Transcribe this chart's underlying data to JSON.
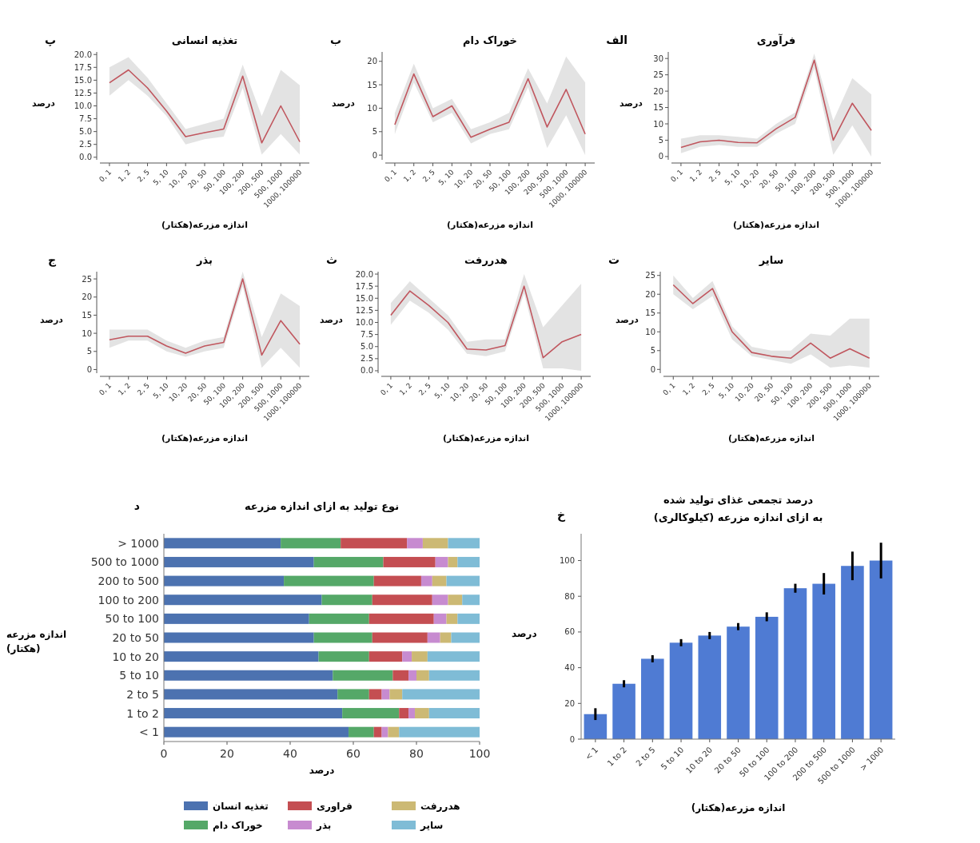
{
  "chart_data": [
    {
      "type": "line",
      "title": "فرآوری",
      "xlabel": "اندازه مزرعه(هکتار)",
      "ylabel": "درصد",
      "annotations": [
        "الف"
      ],
      "categories": [
        "0, 1",
        "1, 2",
        "2, 5",
        "5, 10",
        "10, 20",
        "20, 50",
        "50, 100",
        "100, 200",
        "200, 500",
        "500, 1000",
        "1000, 100000"
      ],
      "ylim": [
        -1,
        32
      ],
      "yticks": [
        0,
        5,
        10,
        15,
        20,
        25,
        30
      ],
      "series": [
        {
          "color": "#c0565e",
          "values": [
            2.8,
            4.5,
            5,
            4.3,
            4.2,
            8.5,
            12,
            29.5,
            5,
            16.3,
            8
          ],
          "lower": [
            1,
            3,
            3.5,
            3,
            3,
            7,
            10,
            27,
            0.5,
            9.5,
            0
          ],
          "upper": [
            5.5,
            6.5,
            6.5,
            6,
            5.5,
            10,
            13.5,
            31.5,
            11,
            24,
            19
          ]
        }
      ]
    },
    {
      "type": "line",
      "title": "خوراک دام",
      "xlabel": "اندازه مزرعه(هکتار)",
      "ylabel": "درصد",
      "annotations": [
        "ب"
      ],
      "categories": [
        "0, 1",
        "1, 2",
        "2, 5",
        "5, 10",
        "10, 20",
        "20, 50",
        "50, 100",
        "100, 200",
        "200, 500",
        "500, 1000",
        "1000, 100000"
      ],
      "ylim": [
        -1,
        22
      ],
      "yticks": [
        0,
        5,
        10,
        15,
        20
      ],
      "series": [
        {
          "color": "#c0565e",
          "values": [
            6.5,
            17.3,
            8.2,
            10.5,
            3.8,
            5.5,
            7,
            16.3,
            6,
            14,
            4.5
          ],
          "lower": [
            4.5,
            15.5,
            7,
            9,
            2.5,
            4.5,
            5.5,
            14.5,
            1.5,
            8.5,
            0
          ],
          "upper": [
            9,
            19.5,
            10,
            12,
            5.5,
            7,
            9,
            18.5,
            11,
            21,
            15.5
          ]
        }
      ]
    },
    {
      "type": "line",
      "title": "تغذیه انسانی",
      "xlabel": "اندازه مزرعه(هکتار)",
      "ylabel": "درصد",
      "annotations": [
        "پ"
      ],
      "categories": [
        "0, 1",
        "1, 2",
        "2, 5",
        "5, 10",
        "10, 20",
        "20, 50",
        "50, 100",
        "100, 200",
        "200, 500",
        "500, 1000",
        "1000, 100000"
      ],
      "ylim": [
        -0.5,
        20.5
      ],
      "yticks": [
        {
          "value": 0,
          "label": "0.0"
        },
        2.5,
        {
          "value": 5,
          "label": "5.0"
        },
        7.5,
        {
          "value": 10,
          "label": "10.0"
        },
        12.5,
        {
          "value": 15,
          "label": "15.0"
        },
        17.5,
        {
          "value": 20,
          "label": "20.0"
        }
      ],
      "series": [
        {
          "color": "#c0565e",
          "values": [
            14.5,
            17,
            13.5,
            9,
            4,
            4.8,
            5.5,
            15.8,
            2.8,
            10,
            3
          ],
          "lower": [
            12,
            15,
            12,
            8,
            2.5,
            3.5,
            4,
            13.5,
            0.5,
            4.5,
            0.5
          ],
          "upper": [
            17.5,
            19.5,
            15.5,
            10.5,
            5.5,
            6.5,
            7.5,
            18,
            8,
            17,
            14
          ]
        }
      ]
    },
    {
      "type": "line",
      "title": "سایر",
      "xlabel": "اندازه مزرعه(هکتار)",
      "ylabel": "درصد",
      "annotations": [
        "ت"
      ],
      "categories": [
        "0, 1",
        "1, 2",
        "2, 5",
        "5, 10",
        "10, 20",
        "20, 50",
        "50, 100",
        "100, 200",
        "200, 500",
        "500, 1000",
        "1000, 100000"
      ],
      "ylim": [
        -1,
        26
      ],
      "yticks": [
        0,
        5,
        10,
        15,
        20,
        25
      ],
      "series": [
        {
          "color": "#c0565e",
          "values": [
            22.5,
            17.5,
            21.5,
            10,
            4.5,
            3.5,
            3,
            7,
            3,
            5.5,
            3
          ],
          "lower": [
            20,
            16,
            19.5,
            8,
            3.5,
            2.5,
            1.5,
            4,
            0.5,
            1,
            0.5
          ],
          "upper": [
            25,
            19,
            23.5,
            11.5,
            6,
            5,
            5,
            9.5,
            9,
            13.5,
            13.5
          ]
        }
      ]
    },
    {
      "type": "line",
      "title": "هدررفت",
      "xlabel": "اندازه مزرعه(هکتار)",
      "ylabel": "درصد",
      "annotations": [
        "ث"
      ],
      "categories": [
        "0, 1",
        "1, 2",
        "2, 5",
        "5, 10",
        "10, 20",
        "20, 50",
        "50, 100",
        "100, 200",
        "200, 500",
        "500, 1000",
        "1000, 100000"
      ],
      "ylim": [
        -0.5,
        20.5
      ],
      "yticks": [
        {
          "value": 0,
          "label": "0.0"
        },
        2.5,
        {
          "value": 5,
          "label": "5.0"
        },
        7.5,
        {
          "value": 10,
          "label": "10.0"
        },
        12.5,
        {
          "value": 15,
          "label": "15.0"
        },
        17.5,
        {
          "value": 20,
          "label": "20.0"
        }
      ],
      "series": [
        {
          "color": "#c0565e",
          "values": [
            11.5,
            16.5,
            13.5,
            10,
            4.5,
            4.3,
            5.2,
            17.5,
            2.7,
            6,
            7.5
          ],
          "lower": [
            9.5,
            14.5,
            12,
            8.5,
            3.5,
            3,
            4,
            16,
            0.5,
            0.5,
            0
          ],
          "upper": [
            14,
            18.5,
            15,
            11.5,
            6,
            6.5,
            6.5,
            20,
            9,
            13.5,
            18
          ]
        }
      ]
    },
    {
      "type": "line",
      "title": "بذر",
      "xlabel": "اندازه مزرعه(هکتار)",
      "ylabel": "درصد",
      "annotations": [
        "ج"
      ],
      "categories": [
        "0, 1",
        "1, 2",
        "2, 5",
        "5, 10",
        "10, 20",
        "20, 50",
        "50, 100",
        "100, 200",
        "200, 500",
        "500, 1000",
        "1000, 100000"
      ],
      "ylim": [
        -1,
        27
      ],
      "yticks": [
        0,
        5,
        10,
        15,
        20,
        25
      ],
      "series": [
        {
          "color": "#c0565e",
          "values": [
            8.2,
            9.2,
            9.2,
            6.5,
            4.5,
            6.5,
            7.5,
            25,
            4,
            13.5,
            7
          ],
          "lower": [
            6,
            8,
            8,
            5,
            3.5,
            5,
            6,
            23,
            0.5,
            6,
            0.5
          ],
          "upper": [
            11,
            11,
            11,
            8,
            6,
            8,
            9,
            27,
            9,
            21,
            17.5
          ]
        }
      ]
    },
    {
      "type": "bar",
      "title": "درصد تجمعی غذای تولید شده\n(کیلوکالری) به ازای اندازه مزرعه",
      "xlabel": "اندازه مزرعه(هکتار)",
      "ylabel": "درصد",
      "annotations": [
        "خ"
      ],
      "categories": [
        "< 1",
        "1 to 2",
        "2 to 5",
        "5 to 10",
        "10 to 20",
        "20 to 50",
        "50 to 100",
        "100 to 200",
        "200 to 500",
        "500 to 1000",
        "> 1000"
      ],
      "color": "#4f7bd3",
      "values": [
        14,
        31,
        45,
        54,
        58,
        63,
        68.5,
        84.5,
        87,
        97,
        100
      ],
      "errors": [
        3.3,
        2,
        2,
        2,
        2,
        2,
        2.5,
        2.5,
        6,
        8,
        10
      ],
      "ylim": [
        0,
        115
      ],
      "yticks": [
        0,
        20,
        40,
        60,
        80,
        100
      ]
    },
    {
      "type": "bar",
      "orientation": "horizontal",
      "stacked": true,
      "title": "نوع تولید به ازای اندازه مزرعه",
      "xlabel": "درصد",
      "ylabel": "اندازه مزرعه\n(هکتار)",
      "annotations": [
        "د"
      ],
      "legend": "bottom",
      "xlim": [
        0,
        100
      ],
      "xticks": [
        0,
        20,
        40,
        60,
        80,
        100
      ],
      "categories": [
        "> 1000",
        "500 to 1000",
        "200 to 500",
        "100 to 200",
        "50 to 100",
        "20 to 50",
        "10 to 20",
        "5 to 10",
        "2 to 5",
        "1 to 2",
        "< 1"
      ],
      "series": [
        {
          "name": "تغذیه انسان",
          "color": "#4c72b0",
          "values": [
            37,
            47.5,
            38,
            50,
            46,
            47.5,
            49,
            53.5,
            55,
            56.5,
            58.5
          ]
        },
        {
          "name": "خوراک دام",
          "color": "#55a868",
          "values": [
            19,
            22,
            28.5,
            16,
            19,
            18.5,
            16,
            19,
            10,
            18,
            8
          ]
        },
        {
          "name": "فراوری",
          "color": "#c44e52",
          "values": [
            21,
            16.5,
            15,
            19,
            20.5,
            17.5,
            10.5,
            5,
            4,
            3,
            2.5
          ]
        },
        {
          "name": "بذر",
          "color": "#c78bd0",
          "values": [
            5,
            4,
            3.5,
            5,
            4,
            4,
            3,
            2.5,
            2.5,
            2,
            2
          ]
        },
        {
          "name": "هدررفت",
          "color": "#ccb974",
          "values": [
            8,
            3,
            4.5,
            4.5,
            3.5,
            3.5,
            5,
            4,
            4,
            4.5,
            3.5
          ]
        },
        {
          "name": "سایر",
          "color": "#7fbcd6",
          "values": [
            10,
            7,
            10.5,
            5.5,
            7,
            9,
            16.5,
            16,
            24.5,
            16,
            25.5
          ]
        }
      ]
    }
  ]
}
